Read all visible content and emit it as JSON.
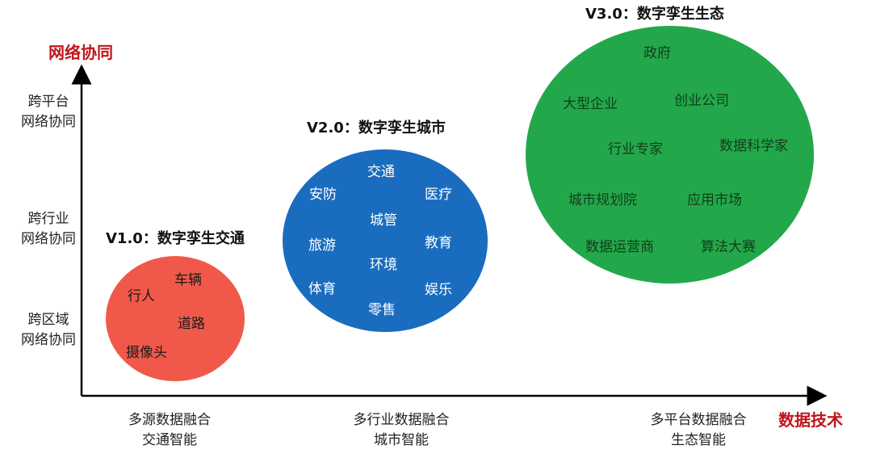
{
  "y_axis": {
    "title": "网络协同",
    "levels": [
      {
        "line1": "跨平台",
        "line2": "网络协同"
      },
      {
        "line1": "跨行业",
        "line2": "网络协同"
      },
      {
        "line1": "跨区域",
        "line2": "网络协同"
      }
    ]
  },
  "x_axis": {
    "title": "数据技术",
    "levels": [
      {
        "line1": "多源数据融合",
        "line2": "交通智能"
      },
      {
        "line1": "多行业数据融合",
        "line2": "城市智能"
      },
      {
        "line1": "多平台数据融合",
        "line2": "生态智能"
      }
    ]
  },
  "stages": [
    {
      "title": "V1.0：数字孪生交通",
      "color": "#f0594a",
      "items": [
        "车辆",
        "行人",
        "道路",
        "摄像头"
      ]
    },
    {
      "title": "V2.0：数字孪生城市",
      "color": "#1a6cbf",
      "items": [
        "交通",
        "安防",
        "医疗",
        "城管",
        "旅游",
        "教育",
        "环境",
        "体育",
        "娱乐",
        "零售"
      ]
    },
    {
      "title": "V3.0：数字孪生生态",
      "color": "#22a84a",
      "items": [
        "政府",
        "大型企业",
        "创业公司",
        "行业专家",
        "数据科学家",
        "城市规划院",
        "应用市场",
        "数据运营商",
        "算法大赛"
      ]
    }
  ]
}
